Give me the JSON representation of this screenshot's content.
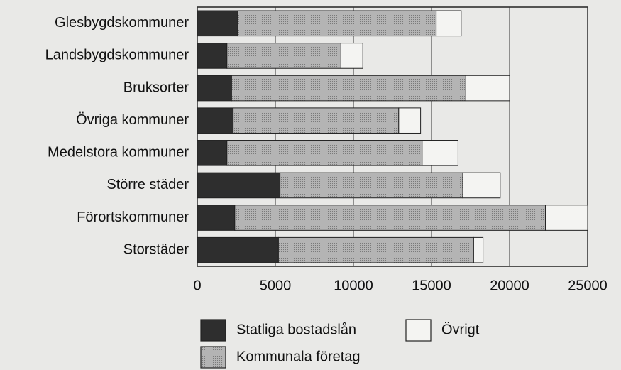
{
  "chart_data": {
    "type": "stacked-barh",
    "categories": [
      "Glesbygdskommuner",
      "Landsbygdskommuner",
      "Bruksorter",
      "Övriga kommuner",
      "Medelstora kommuner",
      "Större städer",
      "Förortskommuner",
      "Storstäder"
    ],
    "series": [
      {
        "name": "Statliga bostadslån",
        "color": "#2e2e2e",
        "values": [
          2600,
          1900,
          2200,
          2300,
          1900,
          5300,
          2400,
          5200
        ]
      },
      {
        "name": "Kommunala företag",
        "color": "#ababab",
        "values": [
          12700,
          7300,
          15000,
          10600,
          12500,
          11700,
          19900,
          12500
        ]
      },
      {
        "name": "Övrigt",
        "color": "#f4f4f2",
        "values": [
          1600,
          1400,
          2800,
          1400,
          2300,
          2400,
          2700,
          600
        ]
      }
    ],
    "xlim": [
      0,
      25000
    ],
    "xticks": [
      0,
      5000,
      10000,
      15000,
      20000,
      25000
    ],
    "grid": true
  }
}
